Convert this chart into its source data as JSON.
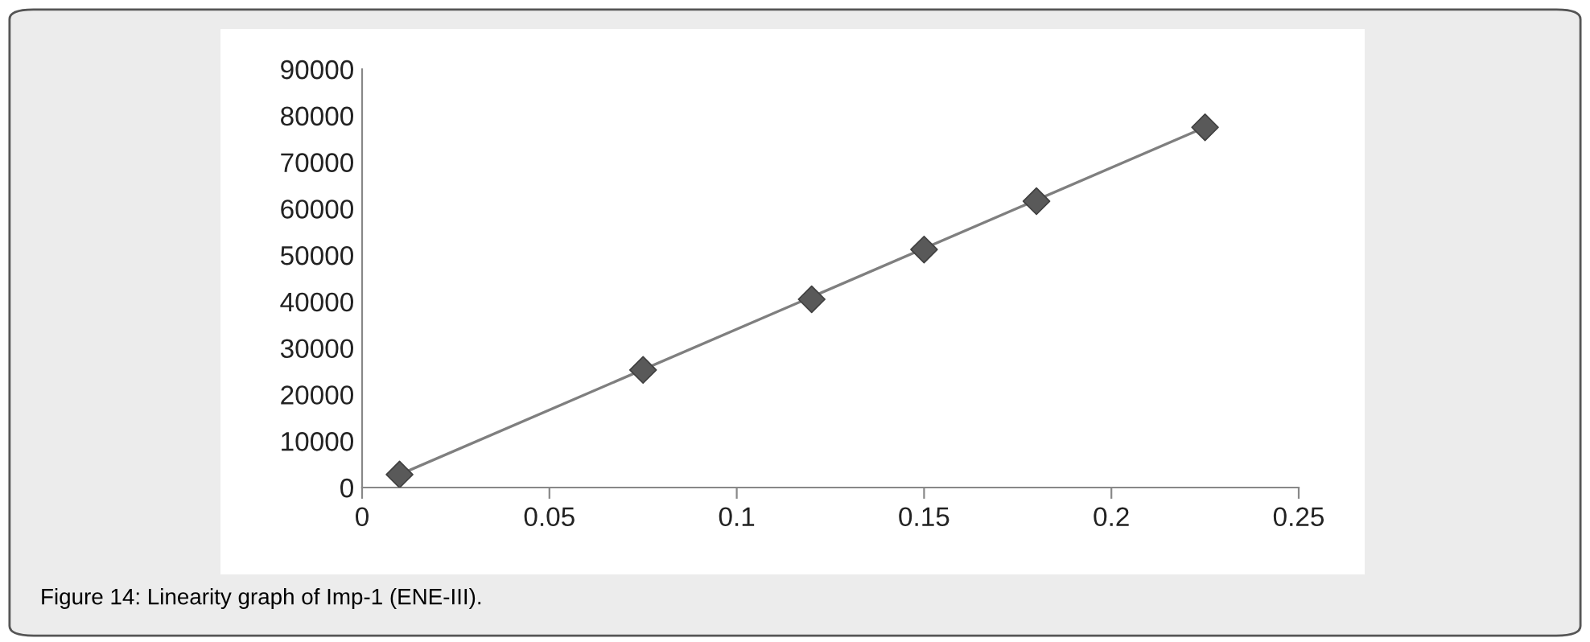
{
  "chart_data": {
    "type": "scatter",
    "annotations": [
      "Figure 14: Linearity graph of Imp-1 (ENE-III)."
    ],
    "x": [
      0.01,
      0.075,
      0.12,
      0.15,
      0.18,
      0.225
    ],
    "series": [
      {
        "color": "#595959",
        "marker": "diamond",
        "values": [
          2800,
          25300,
          40500,
          51200,
          61600,
          77500
        ]
      },
      {
        "type": "line",
        "color": "#7f7f7f",
        "marker": "none",
        "x": [
          0.01,
          0.225
        ],
        "values": [
          2800,
          77500
        ]
      }
    ],
    "xlim": [
      0,
      0.25
    ],
    "xticks": [
      0,
      0.05,
      0.1,
      0.15,
      0.2,
      0.25
    ],
    "ylim": [
      0,
      90000
    ],
    "yticks": [
      0,
      10000,
      20000,
      30000,
      40000,
      50000,
      60000,
      70000,
      80000,
      90000
    ],
    "grid": false,
    "legend": false
  }
}
